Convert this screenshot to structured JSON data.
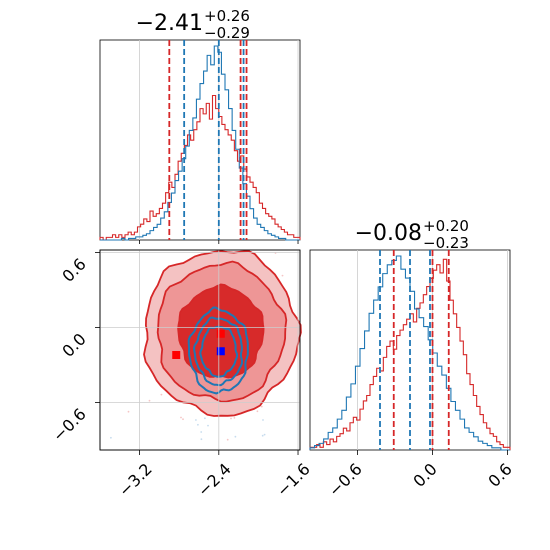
{
  "chart_data": {
    "type": "corner",
    "parameters": [
      {
        "title": {
          "value": "−2.41",
          "plus": "+0.26",
          "minus": "−0.29"
        },
        "range": [
          -3.6,
          -1.58
        ],
        "ticks": [
          -3.2,
          -2.4,
          -1.6
        ],
        "tick_labels": [
          "−3.2",
          "−2.4",
          "−1.6"
        ],
        "quantiles": {
          "red": [
            -2.9,
            -2.18,
            -2.12
          ],
          "blue": [
            -2.75,
            -2.4,
            -2.15
          ]
        }
      },
      {
        "title": {
          "value": "−0.08",
          "plus": "+0.20",
          "minus": "−0.23"
        },
        "range": [
          -0.98,
          0.62
        ],
        "ticks": [
          -0.6,
          0.0,
          0.6
        ],
        "tick_labels": [
          "−0.6",
          "0.0",
          "0.6"
        ],
        "quantiles": {
          "red": [
            -0.31,
            0.0,
            0.13
          ],
          "blue": [
            -0.42,
            -0.18,
            -0.02
          ]
        }
      }
    ],
    "series": [
      {
        "color": "#d62728",
        "hist1": [
          1,
          0,
          1,
          1,
          2,
          1,
          2,
          1,
          2,
          3,
          2,
          3,
          5,
          6,
          8,
          7,
          11,
          9,
          10,
          12,
          14,
          18,
          22,
          20,
          25,
          30,
          33,
          36,
          40,
          38,
          42,
          45,
          50,
          48,
          52,
          46,
          55,
          50,
          47,
          44,
          42,
          40,
          38,
          34,
          30,
          32,
          27,
          24,
          22,
          20,
          18,
          14,
          12,
          10,
          9,
          8,
          6,
          5,
          4,
          3,
          2,
          2,
          1,
          1
        ],
        "hist2": [
          1,
          1,
          2,
          1,
          3,
          2,
          4,
          3,
          5,
          6,
          8,
          7,
          10,
          12,
          11,
          15,
          18,
          20,
          24,
          27,
          30,
          29,
          34,
          38,
          40,
          37,
          42,
          44,
          46,
          48,
          50,
          47,
          52,
          54,
          57,
          60,
          63,
          66,
          68,
          65,
          70,
          62,
          55,
          50,
          45,
          40,
          35,
          28,
          24,
          20,
          16,
          13,
          10,
          8,
          6,
          5,
          3,
          2,
          1,
          1
        ],
        "center": [
          -2.38,
          -0.04
        ],
        "sigma": [
          0.33,
          0.28
        ],
        "contour_levels": [
          0.85,
          0.95,
          0.99
        ],
        "markers": [
          [
            -2.83,
            -0.22
          ],
          [
            -2.38,
            -0.05
          ]
        ]
      },
      {
        "color": "#1f77b4",
        "hist1": [
          0,
          0,
          0,
          0,
          0,
          0,
          1,
          0,
          1,
          1,
          2,
          2,
          3,
          4,
          6,
          8,
          10,
          14,
          18,
          24,
          30,
          38,
          44,
          52,
          60,
          70,
          78,
          90,
          100,
          108,
          118,
          112,
          124,
          120,
          106,
          96,
          84,
          70,
          58,
          46,
          36,
          28,
          20,
          14,
          10,
          8,
          6,
          4,
          3,
          2,
          1,
          1,
          0,
          0,
          0,
          0
        ],
        "hist2": [
          1,
          2,
          3,
          5,
          8,
          10,
          14,
          18,
          24,
          30,
          38,
          46,
          54,
          62,
          68,
          74,
          80,
          84,
          86,
          88,
          82,
          78,
          72,
          64,
          60,
          56,
          50,
          44,
          38,
          34,
          28,
          22,
          18,
          14,
          10,
          8,
          6,
          4,
          3,
          2,
          1,
          1,
          0,
          0
        ],
        "center": [
          -2.4,
          -0.19
        ],
        "sigma": [
          0.17,
          0.19
        ],
        "contour_levels": [
          0.7,
          0.88,
          0.95
        ],
        "markers": [
          [
            -2.38,
            -0.19
          ]
        ]
      }
    ],
    "grid": true
  }
}
